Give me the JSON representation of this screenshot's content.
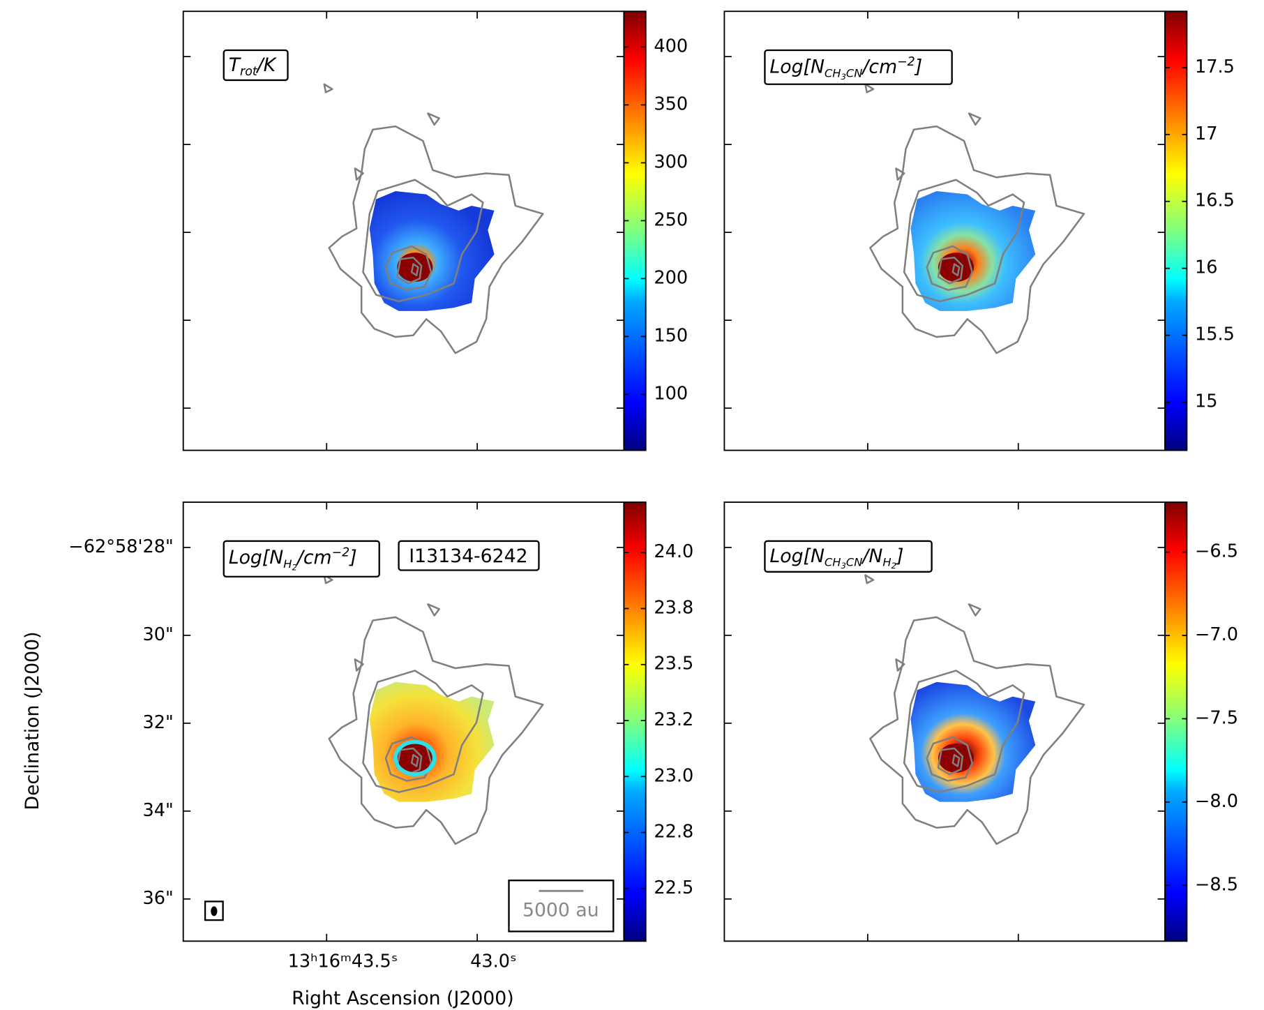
{
  "chart_data": [
    {
      "type": "heatmap",
      "label": [
        "T",
        "rot",
        "/K"
      ],
      "clim": [
        51.7,
        430.8
      ],
      "cticks": [
        100,
        150,
        200,
        250,
        300,
        350,
        400
      ]
    },
    {
      "type": "heatmap",
      "label": [
        "Log[N",
        "CH",
        "3",
        "CN",
        "/cm",
        "−2",
        "]"
      ],
      "clim": [
        14.64,
        17.92
      ],
      "cticks": [
        15.0,
        15.5,
        16.0,
        16.5,
        17.0,
        17.5
      ]
    },
    {
      "type": "heatmap",
      "label": [
        "Log[N",
        "H",
        "2",
        "/cm",
        "−2",
        "]"
      ],
      "source": "I13134-6242",
      "scale_bar": "5000 au",
      "clim": [
        22.265,
        24.225
      ],
      "cticks": [
        {
          "value": 22.5,
          "label": "22.5"
        },
        {
          "value": 22.75,
          "label": "22.8"
        },
        {
          "value": 23.0,
          "label": "23.0"
        },
        {
          "value": 23.25,
          "label": "23.2"
        },
        {
          "value": 23.5,
          "label": "23.5"
        },
        {
          "value": 23.75,
          "label": "23.8"
        },
        {
          "value": 24.0,
          "label": "24.0"
        }
      ],
      "xlabel": "Right Ascension (J2000)",
      "ylabel": "Declination (J2000)",
      "xlim": [
        43.976,
        42.513
      ],
      "xticks": [
        {
          "value": 43.5,
          "label": "13ʰ16ᵐ43.5ˢ"
        },
        {
          "value": 43.0,
          "label": "43.0ˢ"
        }
      ],
      "ylim": [
        36.96,
        26.97
      ],
      "yticks": [
        {
          "value": 28,
          "label": "−62°58'28\""
        },
        {
          "value": 30,
          "label": "30\""
        },
        {
          "value": 32,
          "label": "32\""
        },
        {
          "value": 34,
          "label": "34\""
        },
        {
          "value": 36,
          "label": "36\""
        }
      ]
    },
    {
      "type": "heatmap",
      "label": [
        "Log[N",
        "CH",
        "3",
        "CN",
        "/N",
        "H",
        "2",
        "]"
      ],
      "clim": [
        -8.835,
        -6.2
      ],
      "cticks": [
        {
          "value": -8.5,
          "label": "−8.5"
        },
        {
          "value": -8.0,
          "label": "−8.0"
        },
        {
          "value": -7.5,
          "label": "−7.5"
        },
        {
          "value": -7.0,
          "label": "−7.0"
        },
        {
          "value": -6.5,
          "label": "−6.5"
        }
      ]
    }
  ]
}
